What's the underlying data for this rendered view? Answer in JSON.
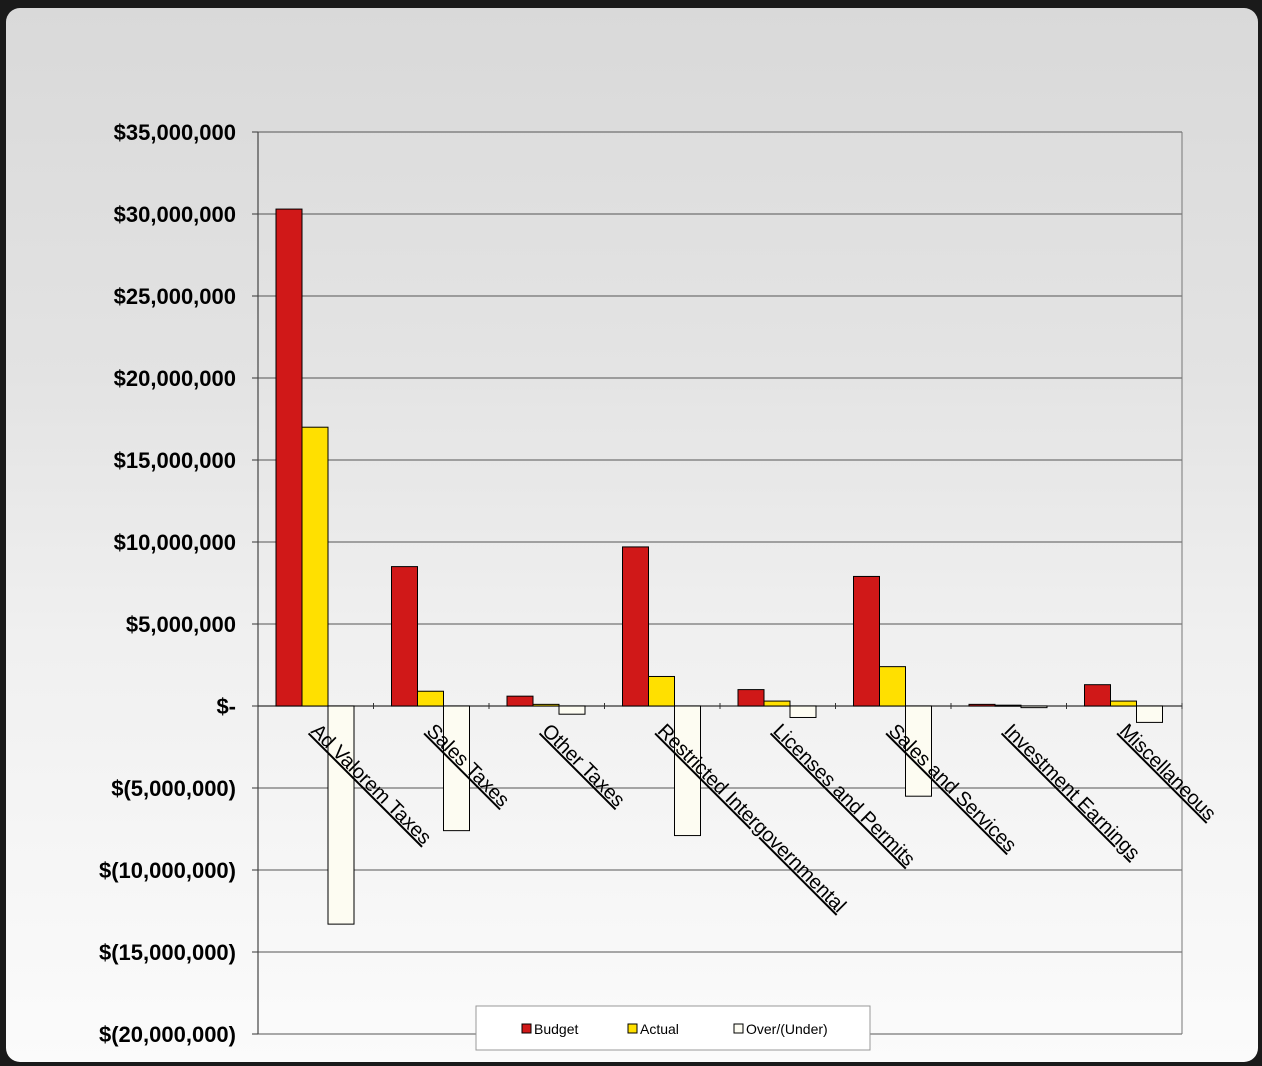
{
  "chart_data": {
    "type": "bar",
    "categories": [
      "Ad Valorem Taxes",
      "Sales Taxes",
      "Other Taxes",
      "Restricted Intergovernmental",
      "Licenses and Permits",
      "Sales and Services",
      "Investment Earnings",
      "Miscellaneous"
    ],
    "series": [
      {
        "name": "Budget",
        "color": "#d01818",
        "values": [
          30300000,
          8500000,
          600000,
          9700000,
          1000000,
          7900000,
          100000,
          1300000
        ]
      },
      {
        "name": "Actual",
        "color": "#ffe000",
        "values": [
          17000000,
          900000,
          100000,
          1800000,
          300000,
          2400000,
          50000,
          300000
        ]
      },
      {
        "name": "Over/(Under)",
        "color": "#fdfcf2",
        "values": [
          -13300000,
          -7600000,
          -500000,
          -7900000,
          -700000,
          -5500000,
          -100000,
          -1000000
        ]
      }
    ],
    "yticks": [
      "$(20,000,000)",
      "$(15,000,000)",
      "$(10,000,000)",
      "$(5,000,000)",
      "$-",
      "$5,000,000",
      "$10,000,000",
      "$15,000,000",
      "$20,000,000",
      "$25,000,000",
      "$30,000,000",
      "$35,000,000"
    ],
    "ylim": [
      -20000000,
      35000000
    ],
    "grid": true,
    "legend_position": "bottom"
  }
}
